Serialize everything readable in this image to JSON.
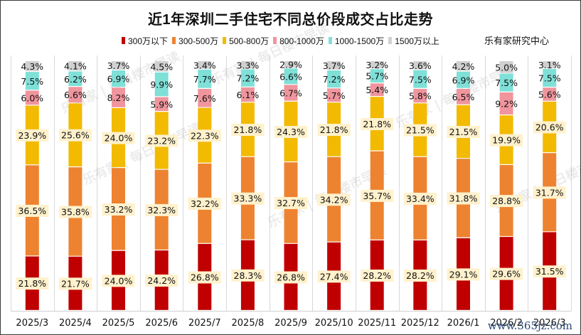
{
  "chart_data": {
    "type": "bar",
    "stacked": true,
    "title": "近1年深圳二手住宅不同总价段成交占比走势",
    "source": "乐有家研究中心",
    "xlabel": "",
    "ylabel": "",
    "ylim": [
      0,
      100
    ],
    "grid": "vertical",
    "legend_position": "top-right",
    "categories": [
      "2025/3",
      "2025/4",
      "2025/5",
      "2025/6",
      "2025/7",
      "2025/8",
      "2025/9",
      "2025/10",
      "2025/11",
      "2025/12",
      "2026/1",
      "2026/2",
      "2026/3"
    ],
    "series": [
      {
        "name": "300万以下",
        "color": "#C00000",
        "values": [
          21.8,
          21.7,
          24.0,
          24.2,
          26.8,
          28.3,
          26.8,
          27.4,
          28.2,
          28.2,
          29.1,
          29.6,
          31.5
        ]
      },
      {
        "name": "300-500万",
        "color": "#ED8330",
        "values": [
          36.5,
          35.8,
          33.2,
          32.3,
          32.2,
          33.3,
          32.7,
          34.2,
          35.7,
          33.4,
          31.8,
          28.8,
          31.7
        ]
      },
      {
        "name": "500-800万",
        "color": "#F2BA00",
        "values": [
          23.9,
          25.6,
          24.0,
          23.2,
          22.3,
          21.8,
          24.3,
          21.8,
          21.8,
          21.5,
          21.5,
          19.9,
          20.6
        ]
      },
      {
        "name": "800-1000万",
        "color": "#F0959D",
        "values": [
          6.0,
          6.6,
          8.2,
          5.9,
          7.6,
          6.1,
          6.7,
          5.7,
          5.4,
          5.8,
          6.5,
          9.2,
          5.6
        ]
      },
      {
        "name": "1000-1500万",
        "color": "#7FE0D8",
        "values": [
          7.5,
          6.2,
          6.9,
          9.9,
          7.7,
          7.2,
          6.6,
          7.2,
          5.7,
          7.5,
          6.9,
          7.5,
          7.5
        ]
      },
      {
        "name": "1500万以上",
        "color": "#D0D0D0",
        "values": [
          4.3,
          4.1,
          3.7,
          4.5,
          3.4,
          3.3,
          2.9,
          3.7,
          3.2,
          3.6,
          4.2,
          5.0,
          3.1
        ]
      }
    ],
    "label_style": {
      "boxed_series": [
        "300万以下",
        "300-500万",
        "500-800万"
      ],
      "box_color": "#FFF1CC"
    },
    "watermarks": [
      "乐有家",
      "每日楼市早读"
    ]
  },
  "footer": {
    "site_watermark": "www.365jz.com"
  }
}
